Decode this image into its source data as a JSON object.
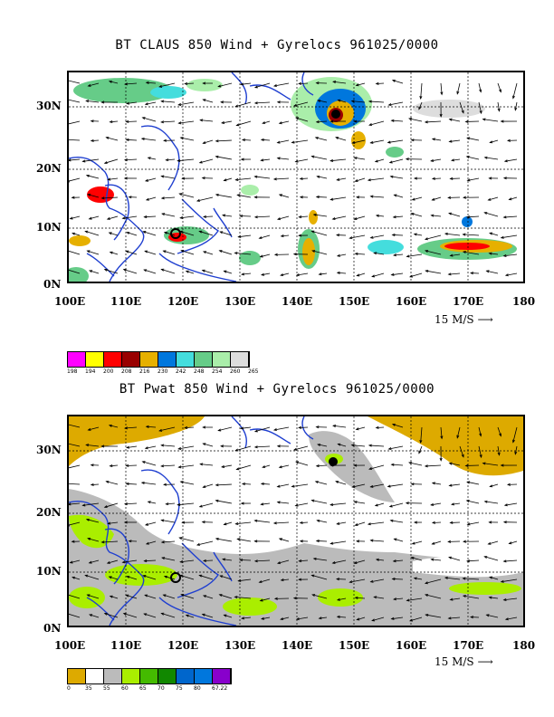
{
  "panels": [
    {
      "title": "BT CLAUS 850 Wind + Gyrelocs 961025/0000",
      "lat_labels": [
        "30N",
        "20N",
        "10N",
        "0N"
      ],
      "lon_labels": [
        "100E",
        "110E",
        "120E",
        "130E",
        "140E",
        "150E",
        "160E",
        "170E",
        "180"
      ],
      "vector_ref": "15 M/S",
      "legend_colors": [
        "#ff00ff",
        "#ffff00",
        "#ff0000",
        "#990000",
        "#e6b000",
        "#0077dd",
        "#44dddd",
        "#66cc88",
        "#aaeeaa",
        "#dddddd"
      ],
      "legend_values": [
        "198",
        "194",
        "200",
        "208",
        "216",
        "230",
        "242",
        "248",
        "254",
        "260",
        "265"
      ]
    },
    {
      "title": "BT Pwat 850 Wind + Gyrelocs 961025/0000",
      "lat_labels": [
        "30N",
        "20N",
        "10N",
        "0N"
      ],
      "lon_labels": [
        "100E",
        "110E",
        "120E",
        "130E",
        "140E",
        "150E",
        "160E",
        "170E",
        "180"
      ],
      "vector_ref": "15 M/S",
      "legend_colors": [
        "#ddaa00",
        "#ffffff",
        "#bbbbbb",
        "#aaee00",
        "#44bb00",
        "#118800",
        "#0066cc",
        "#0077dd",
        "#8800cc"
      ],
      "legend_values": [
        "0",
        "35",
        "55",
        "60",
        "65",
        "70",
        "75",
        "80",
        "67.22"
      ]
    }
  ]
}
